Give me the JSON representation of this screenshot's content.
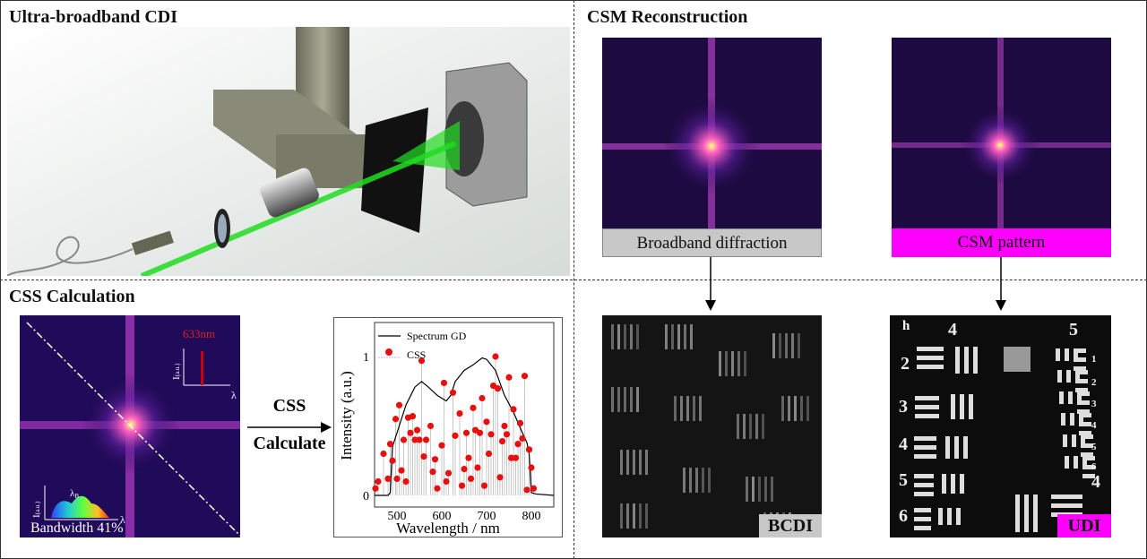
{
  "panels": {
    "top_left_title": "Ultra-broadband CDI",
    "top_right_title": "CSM Reconstruction",
    "bottom_left_title": "CSS Calculation"
  },
  "css_panel": {
    "laser_label": "633nm",
    "intensity_axis": "I",
    "intensity_sub": "(a.u.)",
    "lambda": "λ",
    "lambda_b": "λ",
    "lambda_b_sub": "B",
    "bandwidth": "Bandwidth 41%",
    "arrow_top": "CSS",
    "arrow_bottom": "Calculate"
  },
  "csm": {
    "left_label": "Broadband diffraction",
    "right_label": "CSM pattern",
    "bcdi_tag": "BCDI",
    "udi_tag": "UDI",
    "udi_corner": "h",
    "udi_target_labels": [
      "4",
      "5",
      "2",
      "3",
      "4",
      "5",
      "6",
      "1",
      "2",
      "3",
      "4",
      "5",
      "6",
      "4"
    ]
  },
  "colors": {
    "magenta": "#ff00ff",
    "gray_label": "#c8c8c8",
    "laser_red": "#cc0000",
    "css_point": "#e8100e",
    "beam_green": "#22dd22"
  },
  "chart_data": {
    "type": "line",
    "xlabel": "Wavelength / nm",
    "ylabel": "Intensity (a.u.)",
    "xlim": [
      450,
      850
    ],
    "ylim": [
      0,
      1
    ],
    "xticks": [
      "500",
      "600",
      "700",
      "800"
    ],
    "yticks": [
      "0",
      "1"
    ],
    "legend": "top-left",
    "grid": false,
    "series": [
      {
        "name": "Spectrum GD",
        "type": "line",
        "x": [
          450,
          480,
          485,
          490,
          500,
          520,
          540,
          555,
          570,
          590,
          610,
          620,
          630,
          650,
          670,
          690,
          700,
          720,
          740,
          760,
          780,
          790,
          795,
          800,
          810,
          850
        ],
        "y": [
          0,
          0,
          0.02,
          0.35,
          0.45,
          0.65,
          0.78,
          0.82,
          0.78,
          0.72,
          0.68,
          0.72,
          0.82,
          0.9,
          0.94,
          0.99,
          0.98,
          0.9,
          0.72,
          0.6,
          0.45,
          0.38,
          0.3,
          0.02,
          0.01,
          0
        ]
      },
      {
        "name": "CSS",
        "type": "stem",
        "x": [
          452,
          458,
          470,
          480,
          485,
          490,
          497,
          500,
          505,
          510,
          515,
          520,
          525,
          530,
          535,
          540,
          545,
          550,
          555,
          560,
          565,
          575,
          580,
          585,
          590,
          600,
          605,
          610,
          615,
          625,
          630,
          640,
          645,
          650,
          655,
          660,
          665,
          670,
          675,
          680,
          685,
          690,
          695,
          700,
          705,
          710,
          715,
          720,
          725,
          730,
          735,
          740,
          745,
          750,
          755,
          760,
          765,
          770,
          775,
          780,
          785,
          790,
          795,
          800,
          805
        ],
        "y": [
          0.05,
          0.1,
          0.3,
          0.12,
          0.37,
          0.25,
          0.55,
          0.12,
          0.65,
          0.18,
          0.4,
          0.1,
          0.56,
          0.45,
          0.57,
          0.4,
          0.47,
          0.4,
          0.97,
          0.28,
          0.4,
          0.5,
          0.17,
          0.26,
          0.05,
          0.36,
          0.81,
          0.1,
          0.16,
          0.74,
          0.43,
          0.59,
          0.07,
          0.19,
          0.45,
          0.27,
          0.12,
          0.63,
          0.47,
          0.2,
          0.45,
          0.7,
          0.07,
          0.53,
          0.3,
          0.44,
          0.79,
          1.0,
          0.77,
          0.13,
          0.39,
          0.5,
          0.44,
          0.85,
          0.27,
          0.62,
          0.27,
          0.37,
          0.52,
          0.41,
          0.86,
          0.04,
          0.33,
          0.2,
          0.05
        ]
      }
    ]
  }
}
